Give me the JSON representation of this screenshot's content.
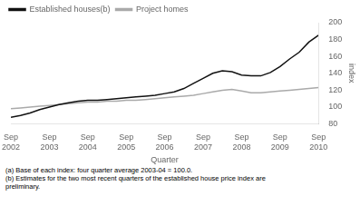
{
  "chart_data": {
    "type": "line",
    "xlabel": "Quarter",
    "ylabel": "index",
    "x": [
      0,
      1,
      2,
      3,
      4,
      5,
      6,
      7,
      8,
      9,
      10,
      11,
      12,
      13,
      14,
      15,
      16,
      17,
      18,
      19,
      20,
      21,
      22,
      23,
      24,
      25,
      26,
      27,
      28,
      29,
      30,
      31,
      32
    ],
    "xlim": [
      0,
      32
    ],
    "xticks": [
      {
        "value": 0,
        "label": "Sep\n2002"
      },
      {
        "value": 4,
        "label": "Sep\n2003"
      },
      {
        "value": 8,
        "label": "Sep\n2004"
      },
      {
        "value": 12,
        "label": "Sep\n2005"
      },
      {
        "value": 16,
        "label": "Sep\n2006"
      },
      {
        "value": 20,
        "label": "Sep\n2007"
      },
      {
        "value": 24,
        "label": "Sep\n2008"
      },
      {
        "value": 28,
        "label": "Sep\n2009"
      },
      {
        "value": 32,
        "label": "Sep\n2010"
      }
    ],
    "ylim": [
      80,
      200
    ],
    "yticks": [
      80,
      100,
      120,
      140,
      160,
      180,
      200
    ],
    "series": [
      {
        "name": "Established houses(b)",
        "color": "#111111",
        "values": [
          88,
          90,
          93,
          97,
          100,
          103,
          105,
          107,
          108,
          108,
          109,
          110,
          111,
          112,
          113,
          114,
          116,
          118,
          122,
          128,
          134,
          140,
          143,
          142,
          138,
          137,
          137,
          141,
          148,
          157,
          165,
          177,
          185
        ]
      },
      {
        "name": "Project homes",
        "color": "#aaaaaa",
        "values": [
          98,
          99,
          100,
          101,
          102,
          103,
          104,
          105,
          106,
          106,
          107,
          107,
          108,
          108,
          109,
          110,
          111,
          112,
          113,
          114,
          116,
          118,
          120,
          121,
          119,
          117,
          117,
          118,
          119,
          120,
          121,
          122,
          123
        ]
      }
    ],
    "annotations": [
      "(a) Base of each index: four quarter average 2003-04 = 100.0.",
      "(b) Estimates for the two most recent quarters of the established house price index are\npreliminary."
    ],
    "legend": "top left",
    "grid": false
  }
}
